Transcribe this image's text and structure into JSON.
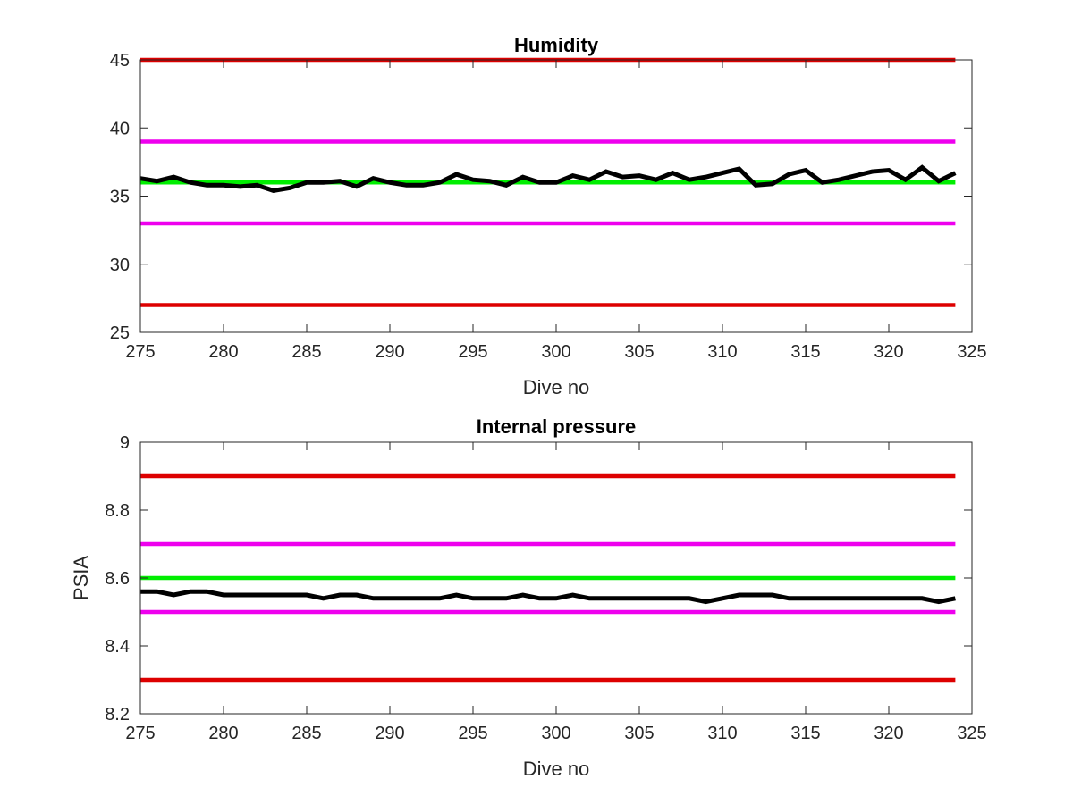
{
  "chart_data": [
    {
      "type": "line",
      "title": "Humidity",
      "xlabel": "Dive no",
      "ylabel": "",
      "xlim": [
        275,
        325
      ],
      "ylim": [
        25,
        45
      ],
      "xticks": [
        "275",
        "280",
        "285",
        "290",
        "295",
        "300",
        "305",
        "310",
        "315",
        "320",
        "325"
      ],
      "yticks": [
        "25",
        "30",
        "35",
        "40",
        "45"
      ],
      "grid": false,
      "legend": "none",
      "series": [
        {
          "color": "#000000",
          "x": [
            275,
            276,
            277,
            278,
            279,
            280,
            281,
            282,
            283,
            284,
            285,
            286,
            287,
            288,
            289,
            290,
            291,
            292,
            293,
            294,
            295,
            296,
            297,
            298,
            299,
            300,
            301,
            302,
            303,
            304,
            305,
            306,
            307,
            308,
            309,
            310,
            311,
            312,
            313,
            314,
            315,
            316,
            317,
            318,
            319,
            320,
            321,
            322,
            323,
            324
          ],
          "y": [
            36.3,
            36.1,
            36.4,
            36.0,
            35.8,
            35.8,
            35.7,
            35.8,
            35.4,
            35.6,
            36.0,
            36.0,
            36.1,
            35.7,
            36.3,
            36.0,
            35.8,
            35.8,
            36.0,
            36.6,
            36.2,
            36.1,
            35.8,
            36.4,
            36.0,
            36.0,
            36.5,
            36.2,
            36.8,
            36.4,
            36.5,
            36.2,
            36.7,
            36.2,
            36.4,
            36.7,
            37.0,
            35.8,
            35.9,
            36.6,
            36.9,
            36.0,
            36.2,
            36.5,
            36.8,
            36.9,
            36.2,
            37.1,
            36.1,
            36.7
          ]
        },
        {
          "color": "#00ee00",
          "x": [
            275,
            324
          ],
          "y": [
            36,
            36
          ]
        },
        {
          "color": "#ee00ee",
          "x": [
            275,
            324
          ],
          "y": [
            39,
            39
          ]
        },
        {
          "color": "#ee00ee",
          "x": [
            275,
            324
          ],
          "y": [
            33,
            33
          ]
        },
        {
          "color": "#dd0000",
          "x": [
            275,
            324
          ],
          "y": [
            45,
            45
          ]
        },
        {
          "color": "#dd0000",
          "x": [
            275,
            324
          ],
          "y": [
            27,
            27
          ]
        }
      ]
    },
    {
      "type": "line",
      "title": "Internal pressure",
      "xlabel": "Dive no",
      "ylabel": "PSIA",
      "xlim": [
        275,
        325
      ],
      "ylim": [
        8.2,
        9.0
      ],
      "xticks": [
        "275",
        "280",
        "285",
        "290",
        "295",
        "300",
        "305",
        "310",
        "315",
        "320",
        "325"
      ],
      "yticks": [
        "8.2",
        "8.4",
        "8.6",
        "8.8",
        "9"
      ],
      "grid": false,
      "legend": "none",
      "series": [
        {
          "color": "#000000",
          "x": [
            275,
            276,
            277,
            278,
            279,
            280,
            281,
            282,
            283,
            284,
            285,
            286,
            287,
            288,
            289,
            290,
            291,
            292,
            293,
            294,
            295,
            296,
            297,
            298,
            299,
            300,
            301,
            302,
            303,
            304,
            305,
            306,
            307,
            308,
            309,
            310,
            311,
            312,
            313,
            314,
            315,
            316,
            317,
            318,
            319,
            320,
            321,
            322,
            323,
            324
          ],
          "y": [
            8.56,
            8.56,
            8.55,
            8.56,
            8.56,
            8.55,
            8.55,
            8.55,
            8.55,
            8.55,
            8.55,
            8.54,
            8.55,
            8.55,
            8.54,
            8.54,
            8.54,
            8.54,
            8.54,
            8.55,
            8.54,
            8.54,
            8.54,
            8.55,
            8.54,
            8.54,
            8.55,
            8.54,
            8.54,
            8.54,
            8.54,
            8.54,
            8.54,
            8.54,
            8.53,
            8.54,
            8.55,
            8.55,
            8.55,
            8.54,
            8.54,
            8.54,
            8.54,
            8.54,
            8.54,
            8.54,
            8.54,
            8.54,
            8.53,
            8.54
          ]
        },
        {
          "color": "#00ee00",
          "x": [
            275,
            324
          ],
          "y": [
            8.6,
            8.6
          ]
        },
        {
          "color": "#ee00ee",
          "x": [
            275,
            324
          ],
          "y": [
            8.7,
            8.7
          ]
        },
        {
          "color": "#ee00ee",
          "x": [
            275,
            324
          ],
          "y": [
            8.5,
            8.5
          ]
        },
        {
          "color": "#dd0000",
          "x": [
            275,
            324
          ],
          "y": [
            8.9,
            8.9
          ]
        },
        {
          "color": "#dd0000",
          "x": [
            275,
            324
          ],
          "y": [
            8.3,
            8.3
          ]
        }
      ]
    }
  ]
}
